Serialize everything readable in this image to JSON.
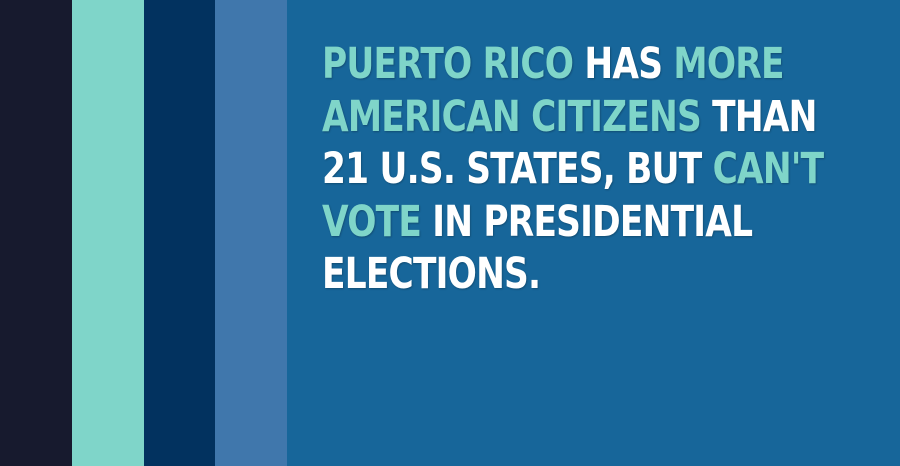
{
  "palette": {
    "background": "#17669a",
    "stripes": [
      "#171a2e",
      "#7fd5c9",
      "#02325f",
      "#4077ac"
    ],
    "highlight": "#7fd5c9",
    "text": "#ffffff"
  },
  "fact": {
    "lines": [
      [
        {
          "text": "PUERTO RICO",
          "highlight": true
        },
        {
          "text": " HAS ",
          "highlight": false
        },
        {
          "text": "MORE",
          "highlight": true
        }
      ],
      [
        {
          "text": "AMERICAN CITIZENS",
          "highlight": true
        },
        {
          "text": " THAN",
          "highlight": false
        }
      ],
      [
        {
          "text": "21 U.S. STATES, BUT ",
          "highlight": false
        },
        {
          "text": "CAN'T",
          "highlight": true
        }
      ],
      [
        {
          "text": "VOTE",
          "highlight": true
        },
        {
          "text": " IN PRESIDENTIAL",
          "highlight": false
        }
      ],
      [
        {
          "text": "ELECTIONS.",
          "highlight": false
        }
      ]
    ]
  }
}
